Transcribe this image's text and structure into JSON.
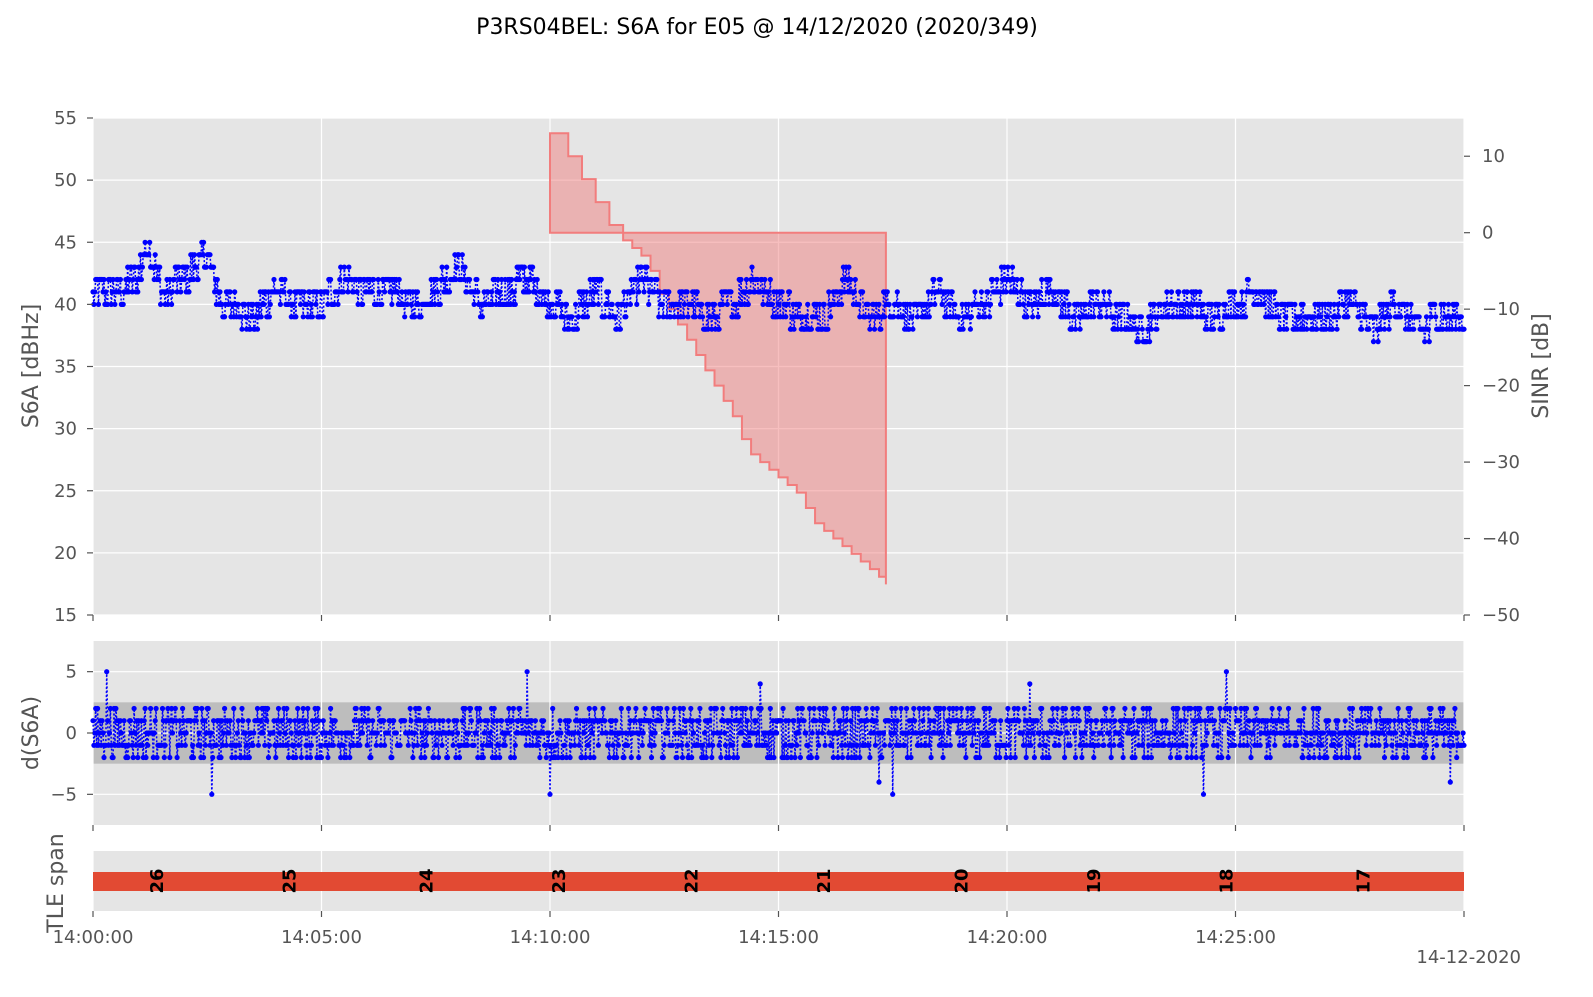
{
  "title": "P3RS04BEL: S6A for E05 @ 14/12/2020 (2020/349)",
  "date_label": "14-12-2020",
  "colors": {
    "panel_bg": "#e5e5e5",
    "grid": "#ffffff",
    "series": "#0000ff",
    "sinr_fill": "#f08080",
    "sinr_edge": "#f27d7d",
    "dband": "#b8b8b8",
    "tle_bar": "#e24a33"
  },
  "chart_data": [
    {
      "type": "scatter",
      "panel": "s6a",
      "ylabel": "S6A [dBHz]",
      "ylim": [
        15,
        55
      ],
      "yticks": [
        "15",
        "20",
        "25",
        "30",
        "35",
        "40",
        "45",
        "50",
        "55"
      ],
      "xlim": [
        "14:00:00",
        "14:30:00"
      ],
      "grid": true,
      "series": [
        {
          "values_note": "",
          "x_minutes": [
            0.0,
            0.5,
            1.0,
            1.2,
            1.5,
            2.0,
            2.5,
            2.8,
            3.0,
            3.5,
            4.0,
            4.5,
            5.0,
            5.5,
            6.0,
            6.5,
            7.0,
            7.5,
            8.0,
            8.5,
            9.0,
            9.5,
            10.0,
            10.5,
            11.0,
            11.5,
            12.0,
            12.5,
            13.0,
            13.5,
            14.0,
            14.5,
            15.0,
            15.5,
            16.0,
            16.5,
            17.0,
            17.5,
            18.0,
            18.5,
            19.0,
            19.5,
            20.0,
            20.5,
            21.0,
            21.5,
            22.0,
            22.5,
            23.0,
            23.5,
            24.0,
            24.5,
            25.0,
            25.5,
            26.0,
            26.5,
            27.0,
            27.5,
            28.0,
            28.5,
            29.0,
            29.5,
            30.0
          ],
          "y_dbhz": [
            41,
            41,
            42,
            45,
            41,
            42,
            44,
            40,
            40,
            39,
            41,
            40,
            40,
            42,
            41,
            41,
            40,
            41,
            43,
            40,
            41,
            42,
            40,
            39,
            41,
            39,
            42,
            40,
            40,
            39,
            40,
            42,
            40,
            39,
            39,
            42,
            39,
            40,
            39,
            41,
            39,
            40,
            42,
            40,
            41,
            39,
            40,
            39,
            38,
            40,
            40,
            39,
            40,
            41,
            39,
            39,
            39,
            40,
            38,
            40,
            38,
            39,
            39
          ]
        }
      ]
    },
    {
      "type": "area",
      "panel": "sinr",
      "ylabel": "SINR [dB]",
      "ylim": [
        -50,
        15
      ],
      "yticks": [
        "−50",
        "−40",
        "−30",
        "−20",
        "−10",
        "0",
        "10"
      ],
      "series": [
        {
          "x_start": "14:10:00",
          "x_end": "14:17:20",
          "upper_db": 0,
          "steps_x_minutes": [
            10.0,
            10.4,
            10.7,
            11.0,
            11.3,
            11.6,
            11.8,
            12.0,
            12.2,
            12.4,
            12.6,
            12.8,
            13.0,
            13.2,
            13.4,
            13.6,
            13.8,
            14.0,
            14.2,
            14.4,
            14.6,
            14.8,
            15.0,
            15.2,
            15.4,
            15.6,
            15.8,
            16.0,
            16.2,
            16.4,
            16.6,
            16.8,
            17.0,
            17.2,
            17.35
          ],
          "lower_db": [
            13,
            10,
            7,
            4,
            1,
            -1,
            -2,
            -3,
            -5,
            -8,
            -10,
            -12,
            -14,
            -16,
            -18,
            -20,
            -22,
            -24,
            -27,
            -29,
            -30,
            -31,
            -32,
            -33,
            -34,
            -36,
            -38,
            -39,
            -40,
            -41,
            -42,
            -43,
            -44,
            -45,
            -46
          ]
        }
      ]
    },
    {
      "type": "scatter",
      "panel": "ds6a",
      "ylabel": "d(S6A)",
      "ylim": [
        -7.5,
        7.5
      ],
      "yticks": [
        "−5",
        "0",
        "5"
      ],
      "band": [
        -2.5,
        2.5
      ],
      "series": [
        {
          "x_minutes_extremes": [
            0.3,
            2.6,
            9.5,
            10.0,
            14.6,
            17.2,
            17.5,
            20.5,
            24.3,
            24.8,
            29.7
          ],
          "y_extremes": [
            5,
            -5,
            5,
            -5,
            4,
            -4,
            -5,
            4,
            -5,
            5,
            -4
          ]
        }
      ]
    },
    {
      "type": "bar",
      "panel": "tle",
      "ylabel": "TLE span",
      "categories": [
        "26",
        "25",
        "24",
        "23",
        "22",
        "21",
        "20",
        "19",
        "18",
        "17"
      ],
      "x_minutes": [
        1.4,
        4.3,
        7.3,
        10.2,
        13.1,
        16.0,
        19.0,
        21.9,
        24.8,
        27.8
      ]
    }
  ],
  "xaxis": {
    "ticks": [
      "14:00:00",
      "14:05:00",
      "14:10:00",
      "14:15:00",
      "14:20:00",
      "14:25:00"
    ],
    "tick_minutes": [
      0,
      5,
      10,
      15,
      20,
      25
    ]
  }
}
